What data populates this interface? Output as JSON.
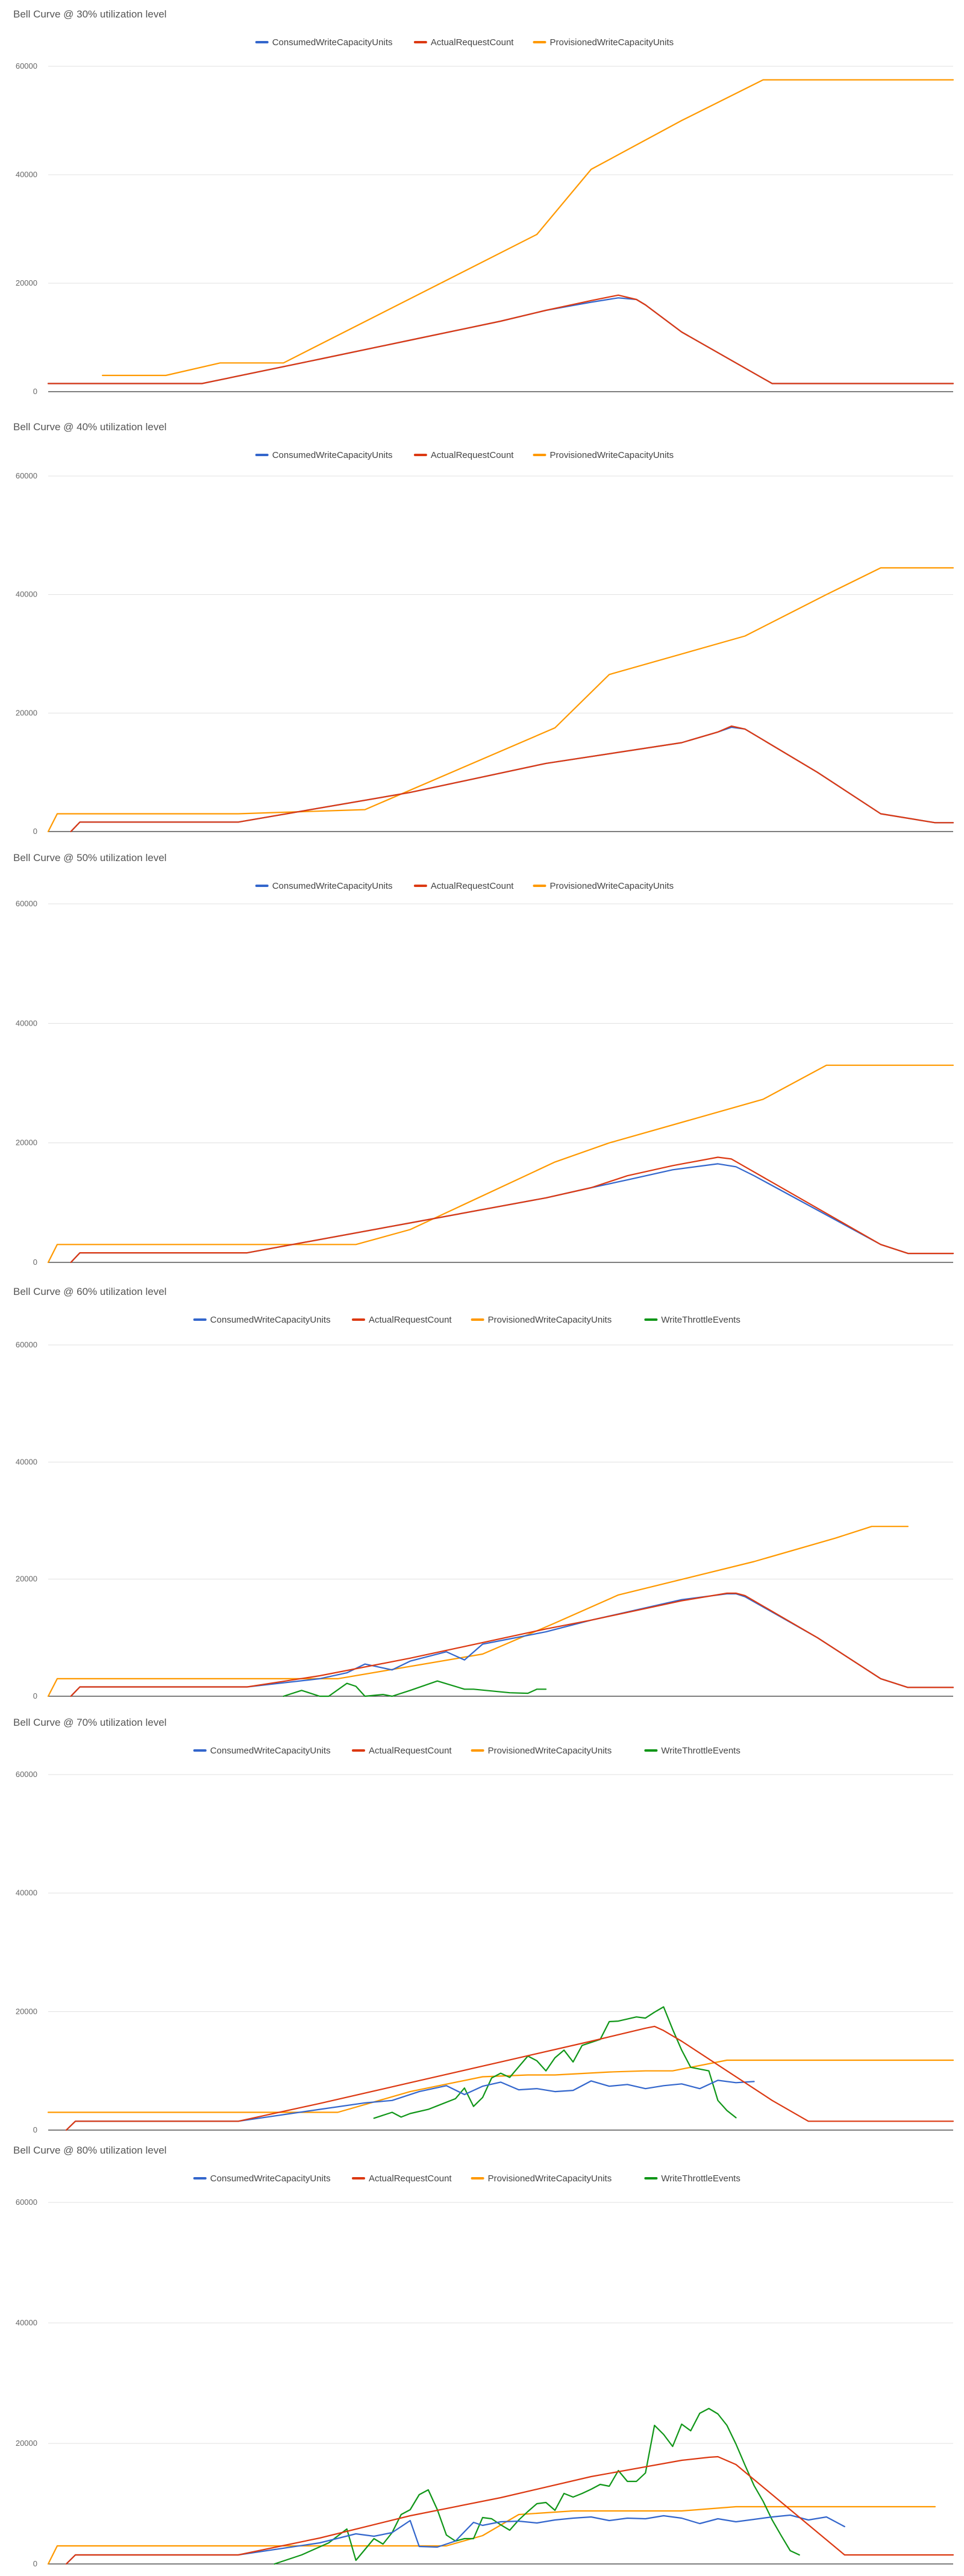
{
  "colors": {
    "ConsumedWriteCapacityUnits": "#3366cc",
    "ActualRequestCount": "#dc3912",
    "ProvisionedWriteCapacityUnits": "#ff9900",
    "WriteThrottleEvents": "#109618",
    "grid": "#e0e0e0",
    "axis": "#333333"
  },
  "chart_data": [
    {
      "type": "line",
      "title": "Bell Curve @ 30% utilization level",
      "ylim": [
        0,
        60000
      ],
      "yticks": [
        "0",
        "20000",
        "40000",
        "60000"
      ],
      "ytick_values": [
        0,
        20000,
        40000,
        60000
      ],
      "legend": [
        "ConsumedWriteCapacityUnits",
        "ActualRequestCount",
        "ProvisionedWriteCapacityUnits"
      ],
      "xlim": [
        0,
        100
      ],
      "series": [
        {
          "name": "ConsumedWriteCapacityUnits",
          "x": [
            0,
            17,
            30,
            40,
            50,
            55,
            60,
            63,
            65,
            66,
            70,
            80,
            100
          ],
          "y": [
            1500,
            1500,
            6000,
            9500,
            13000,
            15000,
            16500,
            17300,
            17000,
            16000,
            11000,
            1500,
            1500
          ]
        },
        {
          "name": "ActualRequestCount",
          "x": [
            0,
            17,
            30,
            40,
            50,
            55,
            60,
            63,
            65,
            66,
            70,
            80,
            100
          ],
          "y": [
            1500,
            1500,
            6000,
            9500,
            13000,
            15000,
            16800,
            17800,
            17000,
            16000,
            11000,
            1500,
            1500
          ]
        },
        {
          "name": "ProvisionedWriteCapacityUnits",
          "x": [
            6,
            13,
            19,
            26,
            54,
            60,
            70,
            79,
            82,
            100
          ],
          "y": [
            3000,
            3000,
            5300,
            5300,
            29000,
            41000,
            50000,
            57500,
            57500,
            57500
          ]
        }
      ]
    },
    {
      "type": "line",
      "title": "Bell Curve @ 40% utilization level",
      "ylim": [
        0,
        60000
      ],
      "yticks": [
        "0",
        "20000",
        "40000",
        "60000"
      ],
      "ytick_values": [
        0,
        20000,
        40000,
        60000
      ],
      "legend": [
        "ConsumedWriteCapacityUnits",
        "ActualRequestCount",
        "ProvisionedWriteCapacityUnits"
      ],
      "xlim": [
        0,
        100
      ],
      "series": [
        {
          "name": "ConsumedWriteCapacityUnits",
          "x": [
            2.5,
            3.5,
            21,
            40,
            55,
            70,
            74,
            75.5,
            77,
            85,
            92,
            98,
            100
          ],
          "y": [
            0,
            1600,
            1600,
            6600,
            11500,
            15000,
            16800,
            17600,
            17300,
            10000,
            3000,
            1500,
            1500
          ]
        },
        {
          "name": "ActualRequestCount",
          "x": [
            2.5,
            3.5,
            21,
            40,
            55,
            70,
            74,
            75.5,
            77,
            85,
            92,
            98,
            100
          ],
          "y": [
            0,
            1600,
            1600,
            6600,
            11500,
            15000,
            16800,
            17800,
            17300,
            10000,
            3000,
            1500,
            1500
          ]
        },
        {
          "name": "ProvisionedWriteCapacityUnits",
          "x": [
            0,
            1,
            21,
            35,
            56,
            62,
            77,
            86,
            92,
            100
          ],
          "y": [
            0,
            3000,
            3000,
            3700,
            17500,
            26500,
            33000,
            40000,
            44500,
            44500
          ]
        }
      ]
    },
    {
      "type": "line",
      "title": "Bell Curve @ 50% utilization level",
      "ylim": [
        0,
        60000
      ],
      "yticks": [
        "0",
        "20000",
        "40000",
        "60000"
      ],
      "ytick_values": [
        0,
        20000,
        40000,
        60000
      ],
      "legend": [
        "ConsumedWriteCapacityUnits",
        "ActualRequestCount",
        "ProvisionedWriteCapacityUnits"
      ],
      "xlim": [
        0,
        100
      ],
      "series": [
        {
          "name": "ConsumedWriteCapacityUnits",
          "x": [
            2.5,
            3.5,
            22,
            40,
            55,
            60,
            64,
            69,
            74,
            76,
            78,
            92,
            95,
            100
          ],
          "y": [
            0,
            1600,
            1600,
            6600,
            10800,
            12500,
            13800,
            15500,
            16500,
            16000,
            14500,
            3000,
            1500,
            1500
          ]
        },
        {
          "name": "ActualRequestCount",
          "x": [
            2.5,
            3.5,
            22,
            40,
            55,
            60,
            64,
            69,
            74,
            75.5,
            77,
            92,
            95,
            100
          ],
          "y": [
            0,
            1600,
            1600,
            6600,
            10800,
            12500,
            14500,
            16200,
            17600,
            17300,
            16000,
            3000,
            1500,
            1500
          ]
        },
        {
          "name": "ProvisionedWriteCapacityUnits",
          "x": [
            0,
            1,
            34,
            40,
            56,
            62,
            79,
            86,
            91,
            100
          ],
          "y": [
            0,
            3000,
            3000,
            5500,
            16800,
            20000,
            27300,
            33000,
            33000,
            33000
          ]
        }
      ]
    },
    {
      "type": "line",
      "title": "Bell Curve @ 60% utilization level",
      "ylim": [
        0,
        60000
      ],
      "yticks": [
        "0",
        "20000",
        "40000",
        "60000"
      ],
      "ytick_values": [
        0,
        20000,
        40000,
        60000
      ],
      "legend": [
        "ConsumedWriteCapacityUnits",
        "ActualRequestCount",
        "ProvisionedWriteCapacityUnits",
        "WriteThrottleEvents"
      ],
      "xlim": [
        0,
        100
      ],
      "series": [
        {
          "name": "ConsumedWriteCapacityUnits",
          "x": [
            2.5,
            3.5,
            22,
            30,
            33,
            35,
            38,
            40,
            42,
            44,
            46,
            48,
            55,
            60,
            70,
            75,
            76,
            77,
            85,
            92,
            95,
            100
          ],
          "y": [
            0,
            1600,
            1600,
            3000,
            4000,
            5500,
            4500,
            6000,
            6800,
            7600,
            6200,
            8900,
            11000,
            13000,
            16500,
            17500,
            17500,
            17000,
            10000,
            3000,
            1500,
            1500
          ]
        },
        {
          "name": "ActualRequestCount",
          "x": [
            2.5,
            3.5,
            22,
            30,
            40,
            55,
            60,
            70,
            75,
            76,
            77,
            85,
            92,
            95,
            100
          ],
          "y": [
            0,
            1600,
            1600,
            3500,
            6500,
            11500,
            13000,
            16300,
            17600,
            17600,
            17200,
            10000,
            3000,
            1500,
            1500
          ]
        },
        {
          "name": "ProvisionedWriteCapacityUnits",
          "x": [
            0,
            1,
            32,
            48,
            56,
            63,
            78,
            87,
            91,
            95
          ],
          "y": [
            0,
            3000,
            3000,
            7200,
            12500,
            17300,
            23000,
            27000,
            29000,
            29000
          ]
        },
        {
          "name": "WriteThrottleEvents",
          "x": [
            26,
            28,
            30,
            31,
            33,
            34,
            35,
            37,
            38,
            40,
            43,
            46,
            47,
            51,
            53,
            54,
            55
          ],
          "y": [
            0,
            1000,
            0,
            0,
            2200,
            1700,
            0,
            300,
            0,
            1000,
            2600,
            1200,
            1200,
            600,
            500,
            1200,
            1200
          ]
        }
      ]
    },
    {
      "type": "line",
      "title": "Bell Curve @ 70% utilization level",
      "ylim": [
        0,
        60000
      ],
      "yticks": [
        "0",
        "20000",
        "40000",
        "60000"
      ],
      "ytick_values": [
        0,
        20000,
        40000,
        60000
      ],
      "legend": [
        "ConsumedWriteCapacityUnits",
        "ActualRequestCount",
        "ProvisionedWriteCapacityUnits",
        "WriteThrottleEvents"
      ],
      "xlim": [
        0,
        100
      ],
      "series": [
        {
          "name": "ConsumedWriteCapacityUnits",
          "x": [
            2,
            3,
            21,
            30,
            35,
            38,
            41,
            44,
            46,
            48,
            50,
            52,
            54,
            56,
            58,
            60,
            62,
            64,
            66,
            68,
            70,
            72,
            74,
            76,
            78
          ],
          "y": [
            0,
            1500,
            1500,
            3500,
            4600,
            5000,
            6500,
            7500,
            6000,
            7400,
            8100,
            6800,
            7000,
            6500,
            6700,
            8300,
            7400,
            7700,
            7000,
            7500,
            7800,
            7000,
            8400,
            8000,
            8200
          ]
        },
        {
          "name": "ActualRequestCount",
          "x": [
            2,
            3,
            21,
            30,
            40,
            50,
            60,
            66,
            67,
            68,
            70,
            80,
            84,
            100
          ],
          "y": [
            0,
            1500,
            1500,
            4500,
            8000,
            11500,
            15000,
            17200,
            17500,
            16800,
            15000,
            5000,
            1500,
            1500
          ]
        },
        {
          "name": "ProvisionedWriteCapacityUnits",
          "x": [
            0,
            32,
            40,
            48,
            53,
            56,
            62,
            66,
            69,
            75,
            100
          ],
          "y": [
            3000,
            3000,
            6500,
            9000,
            9300,
            9300,
            9800,
            10000,
            10000,
            11800,
            11800
          ]
        },
        {
          "name": "WriteThrottleEvents",
          "x": [
            36,
            38,
            39,
            40,
            42,
            43,
            45,
            46,
            47,
            48,
            49,
            50,
            51,
            53,
            54,
            55,
            56,
            57,
            58,
            59,
            61,
            62,
            63,
            65,
            66,
            67,
            68,
            69,
            70,
            71,
            73,
            74,
            75,
            76
          ],
          "y": [
            2000,
            3000,
            2200,
            2800,
            3500,
            4100,
            5300,
            7100,
            4000,
            5500,
            8800,
            9600,
            8900,
            12500,
            11700,
            10000,
            12200,
            13500,
            11500,
            14300,
            15300,
            18300,
            18400,
            19100,
            18900,
            19900,
            20800,
            17000,
            13500,
            10600,
            10000,
            5000,
            3300,
            2100
          ]
        }
      ]
    },
    {
      "type": "line",
      "title": "Bell Curve @ 80% utilization level",
      "ylim": [
        0,
        60000
      ],
      "yticks": [
        "0",
        "20000",
        "40000",
        "60000"
      ],
      "ytick_values": [
        0,
        20000,
        40000,
        60000
      ],
      "legend": [
        "ConsumedWriteCapacityUnits",
        "ActualRequestCount",
        "ProvisionedWriteCapacityUnits",
        "WriteThrottleEvents"
      ],
      "xlim": [
        0,
        100
      ],
      "series": [
        {
          "name": "ConsumedWriteCapacityUnits",
          "x": [
            2,
            3,
            21,
            30,
            34,
            36,
            38,
            40,
            41,
            43,
            45,
            47,
            48,
            50,
            52,
            54,
            56,
            58,
            60,
            62,
            64,
            66,
            68,
            70,
            72,
            74,
            76,
            78,
            80,
            82,
            84,
            86,
            88
          ],
          "y": [
            0,
            1500,
            1500,
            3500,
            5000,
            4600,
            5200,
            7200,
            2900,
            2800,
            3800,
            6900,
            6400,
            7000,
            7100,
            6800,
            7300,
            7600,
            7800,
            7200,
            7600,
            7500,
            8000,
            7600,
            6700,
            7500,
            7000,
            7400,
            7800,
            8100,
            7300,
            7800,
            6200
          ]
        },
        {
          "name": "ActualRequestCount",
          "x": [
            2,
            3,
            21,
            30,
            40,
            50,
            60,
            70,
            73,
            74,
            76,
            84,
            88,
            100
          ],
          "y": [
            0,
            1500,
            1500,
            4300,
            8000,
            11000,
            14500,
            17200,
            17700,
            17800,
            16500,
            6500,
            1500,
            1500
          ]
        },
        {
          "name": "ProvisionedWriteCapacityUnits",
          "x": [
            0,
            1,
            44,
            48,
            52,
            58,
            70,
            76,
            78,
            98
          ],
          "y": [
            0,
            3000,
            3000,
            4700,
            8200,
            8800,
            8800,
            9500,
            9500,
            9500
          ]
        },
        {
          "name": "WriteThrottleEvents",
          "x": [
            25,
            28,
            31,
            33,
            34,
            35,
            36,
            37,
            38,
            39,
            40,
            41,
            42,
            43,
            44,
            45,
            46,
            47,
            48,
            49,
            50,
            51,
            52,
            53,
            54,
            55,
            56,
            57,
            58,
            59,
            60,
            61,
            62,
            63,
            64,
            65,
            66,
            67,
            68,
            69,
            70,
            71,
            72,
            73,
            74,
            75,
            76,
            77,
            78,
            79,
            80,
            81,
            82,
            83
          ],
          "y": [
            0,
            1500,
            3500,
            5800,
            600,
            2400,
            4200,
            3300,
            5200,
            8200,
            9000,
            11500,
            12300,
            9000,
            4800,
            3800,
            4200,
            4200,
            7700,
            7500,
            6500,
            5600,
            7300,
            8700,
            10000,
            10200,
            8900,
            11700,
            11100,
            11700,
            12400,
            13200,
            12900,
            15500,
            13700,
            13700,
            15100,
            23000,
            21500,
            19500,
            23200,
            22100,
            25000,
            25800,
            24900,
            23000,
            19900,
            16400,
            13000,
            10400,
            7300,
            4700,
            2200,
            1500
          ]
        }
      ]
    }
  ]
}
